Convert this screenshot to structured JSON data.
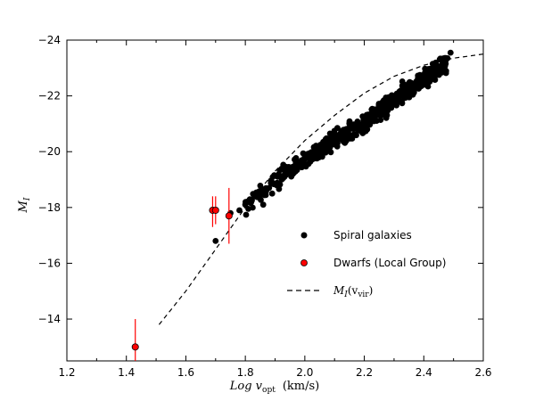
{
  "chart_data": {
    "type": "scatter",
    "xlabel": "Log v_opt (km/s)",
    "ylabel": "M_I",
    "xlim": [
      1.2,
      2.6
    ],
    "ylim": [
      -12.5,
      -24.0
    ],
    "y_inverted": true,
    "grid": false,
    "legend_position": "right",
    "x_ticks": [
      "1.2",
      "1.4",
      "1.6",
      "1.8",
      "2.0",
      "2.2",
      "2.4",
      "2.6"
    ],
    "y_ticks": [
      "−24",
      "−22",
      "−20",
      "−18",
      "−16",
      "−14"
    ],
    "series": [
      {
        "name": "Spiral galaxies",
        "kind": "points",
        "color": "#000000",
        "trend": [
          [
            1.7,
            -16.8
          ],
          [
            1.78,
            -17.9
          ],
          [
            1.85,
            -18.5
          ],
          [
            1.9,
            -19.0
          ],
          [
            2.0,
            -19.7
          ],
          [
            2.1,
            -20.4
          ],
          [
            2.2,
            -21.0
          ],
          [
            2.3,
            -21.8
          ],
          [
            2.4,
            -22.6
          ],
          [
            2.48,
            -23.2
          ]
        ],
        "extremes": [
          [
            1.7,
            -16.8
          ],
          [
            2.49,
            -23.55
          ]
        ]
      },
      {
        "name": "Dwarfs (Local Group)",
        "kind": "points_with_errors",
        "color": "#ff0000",
        "points": [
          {
            "x": 1.43,
            "y": -13.0,
            "ylow": -12.5,
            "yhigh": -14.0
          },
          {
            "x": 1.69,
            "y": -17.9,
            "ylow": -17.3,
            "yhigh": -18.4
          },
          {
            "x": 1.7,
            "y": -17.9,
            "ylow": -17.4,
            "yhigh": -18.4
          },
          {
            "x": 1.745,
            "y": -17.7,
            "ylow": -16.7,
            "yhigh": -18.7
          }
        ]
      },
      {
        "name": "M_I(v_vir)",
        "kind": "dashed_line",
        "color": "#000000",
        "points": [
          [
            1.51,
            -13.8
          ],
          [
            1.6,
            -15.0
          ],
          [
            1.7,
            -16.5
          ],
          [
            1.8,
            -18.0
          ],
          [
            1.9,
            -19.3
          ],
          [
            2.0,
            -20.4
          ],
          [
            2.1,
            -21.3
          ],
          [
            2.2,
            -22.1
          ],
          [
            2.3,
            -22.7
          ],
          [
            2.4,
            -23.1
          ],
          [
            2.5,
            -23.35
          ],
          [
            2.6,
            -23.5
          ]
        ]
      }
    ]
  },
  "legend": {
    "items": [
      {
        "label": "Spiral galaxies"
      },
      {
        "label": "Dwarfs (Local Group)"
      },
      {
        "label_main": "M",
        "label_sub": "I",
        "label_paren_open": "(v",
        "label_sub2": "vir",
        "label_paren_close": ")"
      }
    ]
  },
  "axes": {
    "xlabel_main": "Log v",
    "xlabel_sub": "opt",
    "xlabel_units": "(km/s)",
    "ylabel_main": "M",
    "ylabel_sub": "I"
  }
}
